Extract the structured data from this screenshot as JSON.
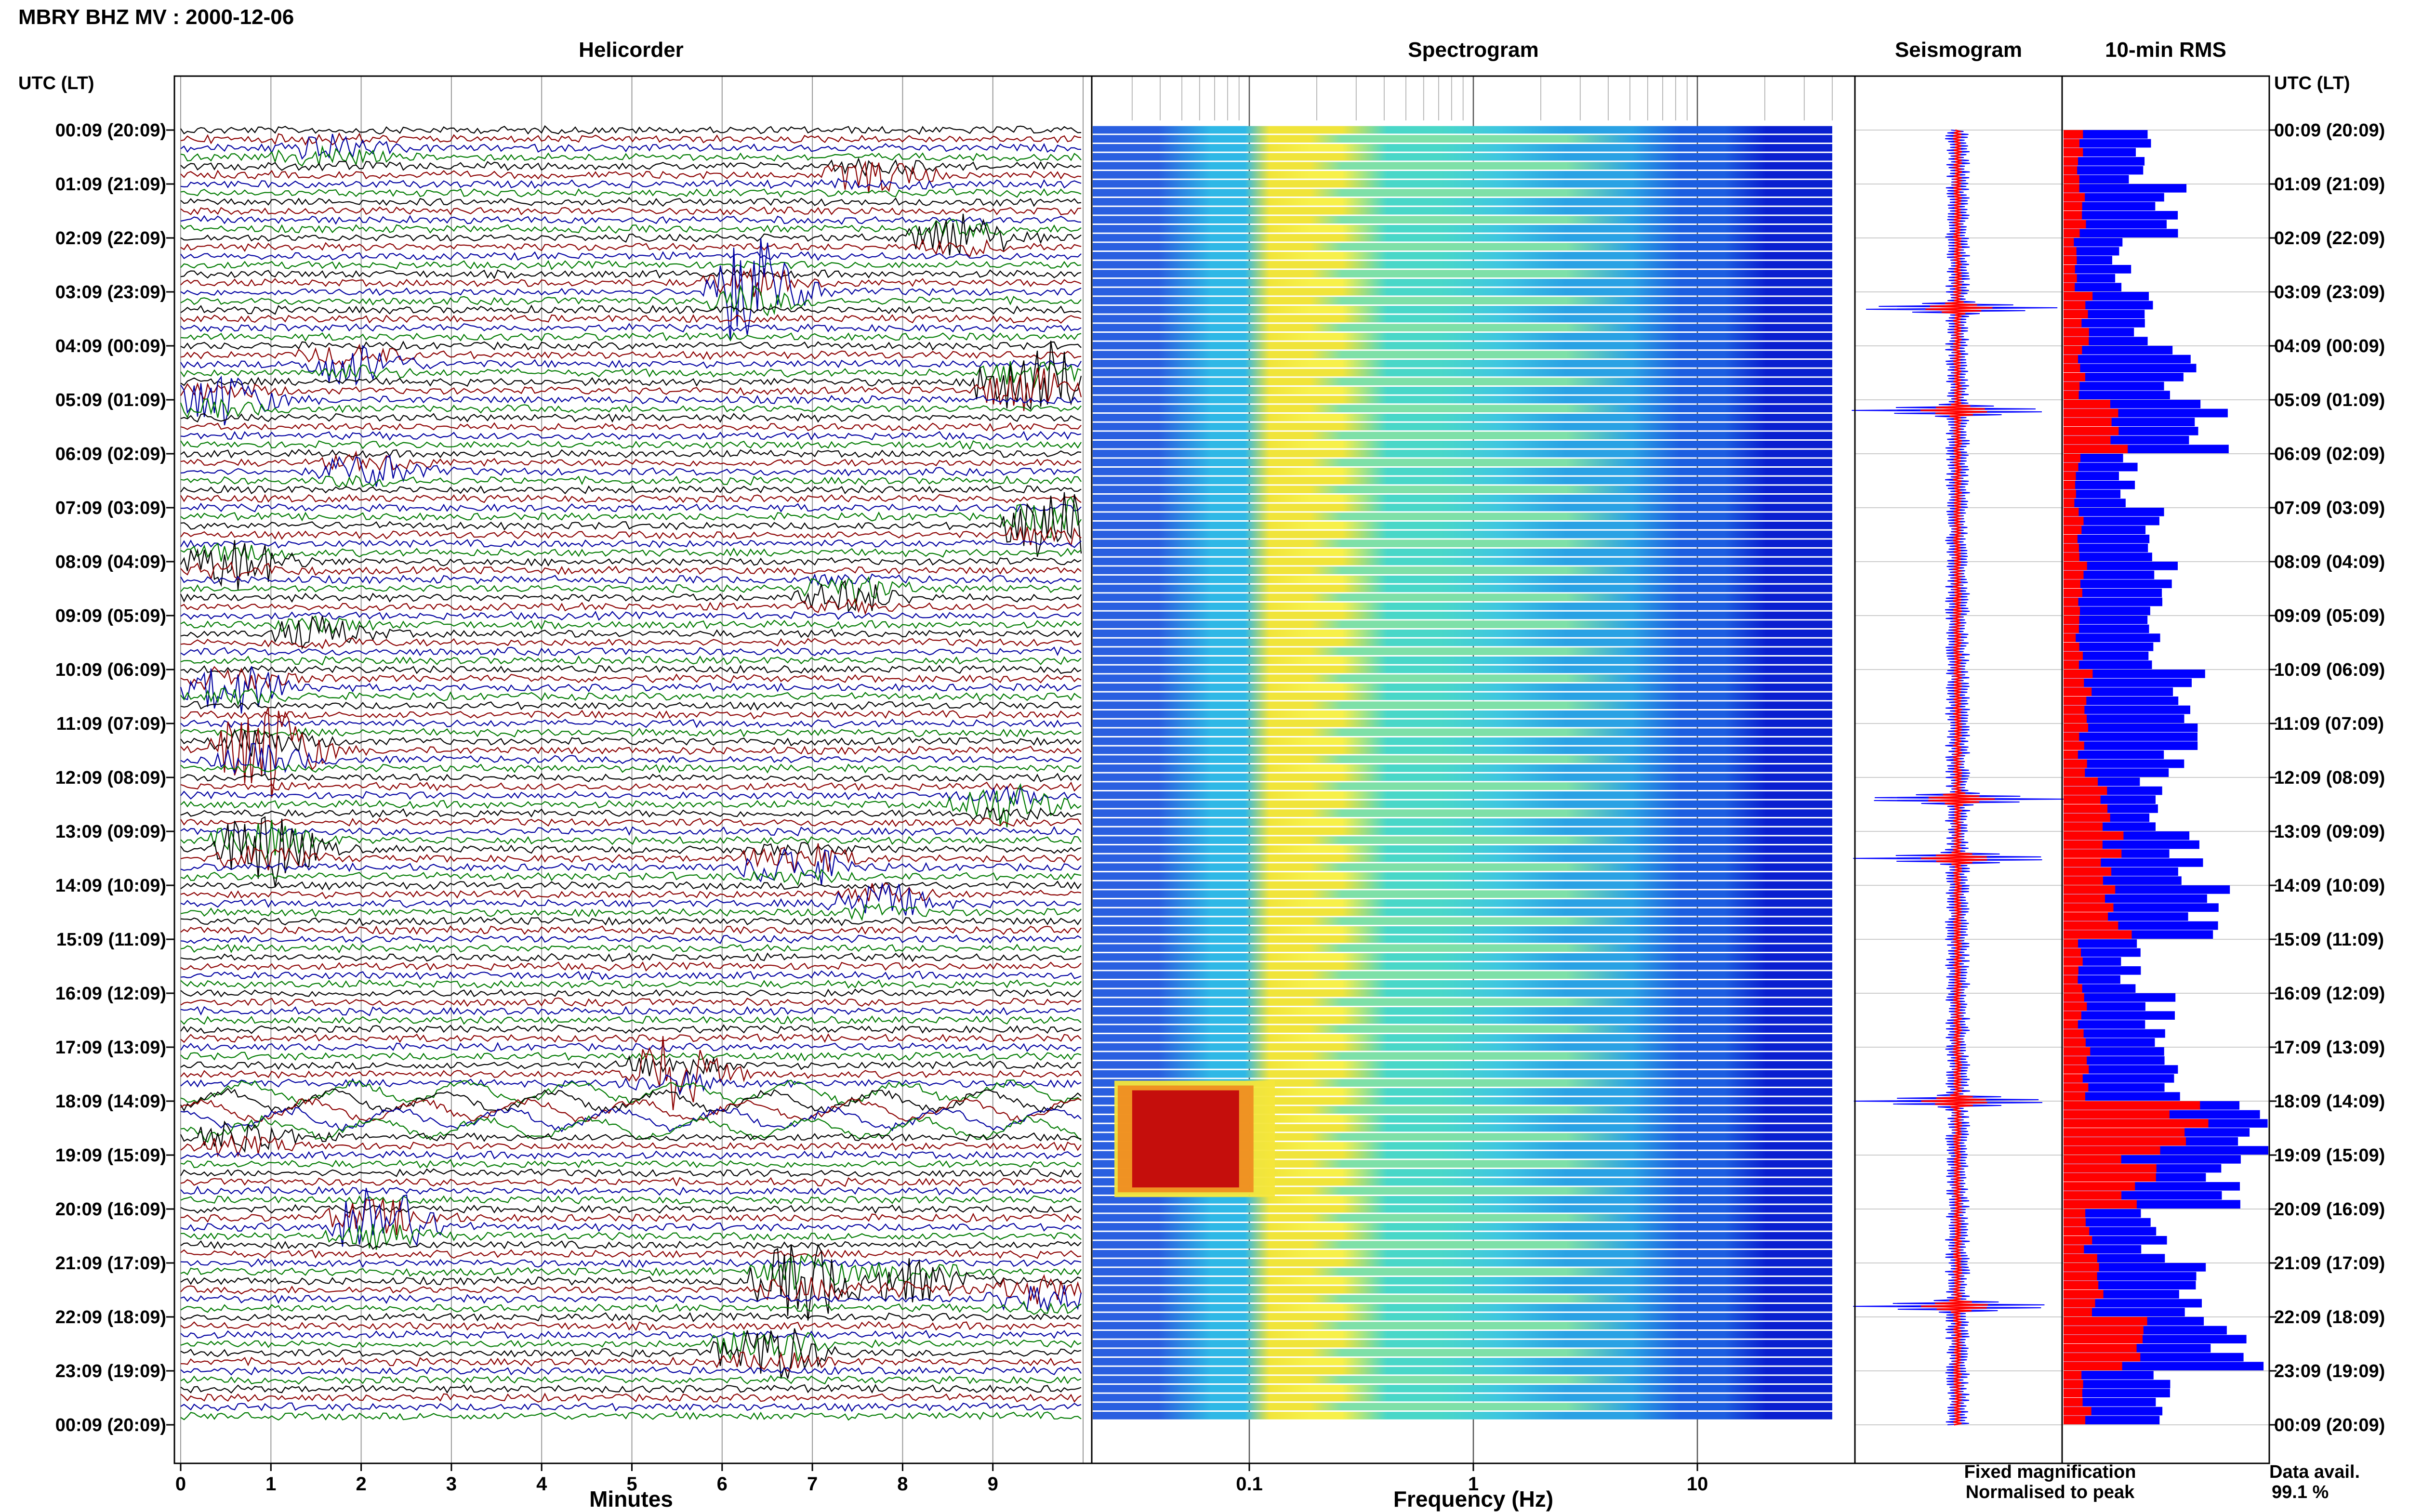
{
  "header": {
    "title": "MBRY BHZ MV : 2000-12-06",
    "utc_label": "UTC (LT)",
    "utc_label_right": "UTC (LT)"
  },
  "panels": {
    "helicorder": "Helicorder",
    "spectrogram": "Spectrogram",
    "seismogram": "Seismogram",
    "rms": "10-min RMS"
  },
  "legend": {
    "fixed": "Fixed magnification",
    "fixed_color": "#0000ff",
    "normalised": "Normalised to peak",
    "normalised_color": "#ff0000",
    "data_avail_label": "Data avail.",
    "data_avail_value": "99.1 %"
  },
  "colors": {
    "trace_cycle": [
      "#000000",
      "#8b0000",
      "#0000a0",
      "#007a00"
    ],
    "spectrogram_low": "#1f3fd8",
    "spectrogram_mid": "#2fc6e0",
    "spectrogram_high": "#f5e83a",
    "spectrogram_peak": "#c0000a"
  },
  "chart_data": [
    {
      "type": "line",
      "name": "helicorder",
      "xlabel": "Minutes",
      "x_ticks": [
        "0",
        "1",
        "2",
        "3",
        "4",
        "5",
        "6",
        "7",
        "8",
        "9"
      ],
      "xlim": [
        0,
        10
      ],
      "time_labels": [
        "00:09 (20:09)",
        "01:09 (21:09)",
        "02:09 (22:09)",
        "03:09 (23:09)",
        "04:09 (00:09)",
        "05:09 (01:09)",
        "06:09 (02:09)",
        "07:09 (03:09)",
        "08:09 (04:09)",
        "09:09 (05:09)",
        "10:09 (06:09)",
        "11:09 (07:09)",
        "12:09 (08:09)",
        "13:09 (09:09)",
        "14:09 (10:09)",
        "15:09 (11:09)",
        "16:09 (12:09)",
        "17:09 (13:09)",
        "18:09 (14:09)",
        "19:09 (15:09)",
        "20:09 (16:09)",
        "21:09 (17:09)",
        "22:09 (18:09)",
        "23:09 (19:09)",
        "00:09 (20:09)"
      ],
      "rows_per_hour": 6,
      "events": [
        {
          "hour": 0.4,
          "minute": 1.5,
          "amp": 1.8
        },
        {
          "hour": 0.8,
          "minute": 7.6,
          "amp": 2.0
        },
        {
          "hour": 2.0,
          "minute": 8.5,
          "amp": 2.2
        },
        {
          "hour": 3.0,
          "minute": 6.2,
          "amp": 5.0
        },
        {
          "hour": 4.3,
          "minute": 1.8,
          "amp": 2.5
        },
        {
          "hour": 4.7,
          "minute": 9.3,
          "amp": 6.0
        },
        {
          "hour": 5.0,
          "minute": 0.3,
          "amp": 2.5
        },
        {
          "hour": 6.3,
          "minute": 2.0,
          "amp": 2.0
        },
        {
          "hour": 7.3,
          "minute": 9.6,
          "amp": 5.0
        },
        {
          "hour": 8.0,
          "minute": 0.5,
          "amp": 2.5
        },
        {
          "hour": 8.6,
          "minute": 7.3,
          "amp": 2.5
        },
        {
          "hour": 9.3,
          "minute": 1.4,
          "amp": 1.8
        },
        {
          "hour": 10.3,
          "minute": 0.5,
          "amp": 3.0
        },
        {
          "hour": 11.5,
          "minute": 0.8,
          "amp": 5.0
        },
        {
          "hour": 12.5,
          "minute": 9.0,
          "amp": 2.0
        },
        {
          "hour": 13.3,
          "minute": 0.8,
          "amp": 5.0
        },
        {
          "hour": 13.6,
          "minute": 6.7,
          "amp": 3.5
        },
        {
          "hour": 14.3,
          "minute": 7.6,
          "amp": 2.5
        },
        {
          "hour": 17.5,
          "minute": 5.3,
          "amp": 3.5
        },
        {
          "hour": 18.7,
          "minute": 0.6,
          "amp": 2.0
        },
        {
          "hour": 20.3,
          "minute": 2.1,
          "amp": 5.0
        },
        {
          "hour": 21.3,
          "minute": 6.8,
          "amp": 5.0
        },
        {
          "hour": 21.3,
          "minute": 8.0,
          "amp": 2.5
        },
        {
          "hour": 21.6,
          "minute": 9.4,
          "amp": 2.5
        },
        {
          "hour": 22.6,
          "minute": 6.4,
          "amp": 5.0
        }
      ],
      "long_period_band_hours": [
        17.8,
        18.6
      ]
    },
    {
      "type": "heatmap",
      "name": "spectrogram",
      "xlabel": "Frequency (Hz)",
      "x_scale": "log",
      "x_ticks": [
        "0.1",
        "1",
        "10"
      ],
      "xlim": [
        0.02,
        50
      ],
      "row_pattern": "1:-;2:+;3:=;4:-;5:+;6:=",
      "hot_spot": {
        "hours": [
          17.8,
          19.6
        ],
        "freq": [
          0.03,
          0.09
        ]
      }
    },
    {
      "type": "line",
      "name": "seismogram",
      "series": [
        {
          "name": "Fixed magnification",
          "color": "#0000ff"
        },
        {
          "name": "Normalised to peak",
          "color": "#ff0000"
        }
      ],
      "spike_hours": [
        3.3,
        5.2,
        12.4,
        13.5,
        18.0,
        21.8
      ]
    },
    {
      "type": "bar",
      "name": "rms",
      "orientation": "horizontal",
      "values_by_hour": [
        40,
        55,
        30,
        45,
        60,
        75,
        35,
        50,
        55,
        45,
        70,
        60,
        45,
        65,
        75,
        35,
        50,
        55,
        100,
        85,
        50,
        65,
        90,
        55
      ],
      "normalised_by_hour": [
        8,
        10,
        6,
        12,
        9,
        30,
        7,
        9,
        10,
        8,
        12,
        10,
        20,
        25,
        28,
        8,
        10,
        12,
        60,
        40,
        14,
        18,
        35,
        12
      ],
      "series": [
        {
          "name": "Fixed magnification",
          "color": "#0000ff"
        },
        {
          "name": "Normalised to peak",
          "color": "#ff0000"
        }
      ]
    }
  ]
}
